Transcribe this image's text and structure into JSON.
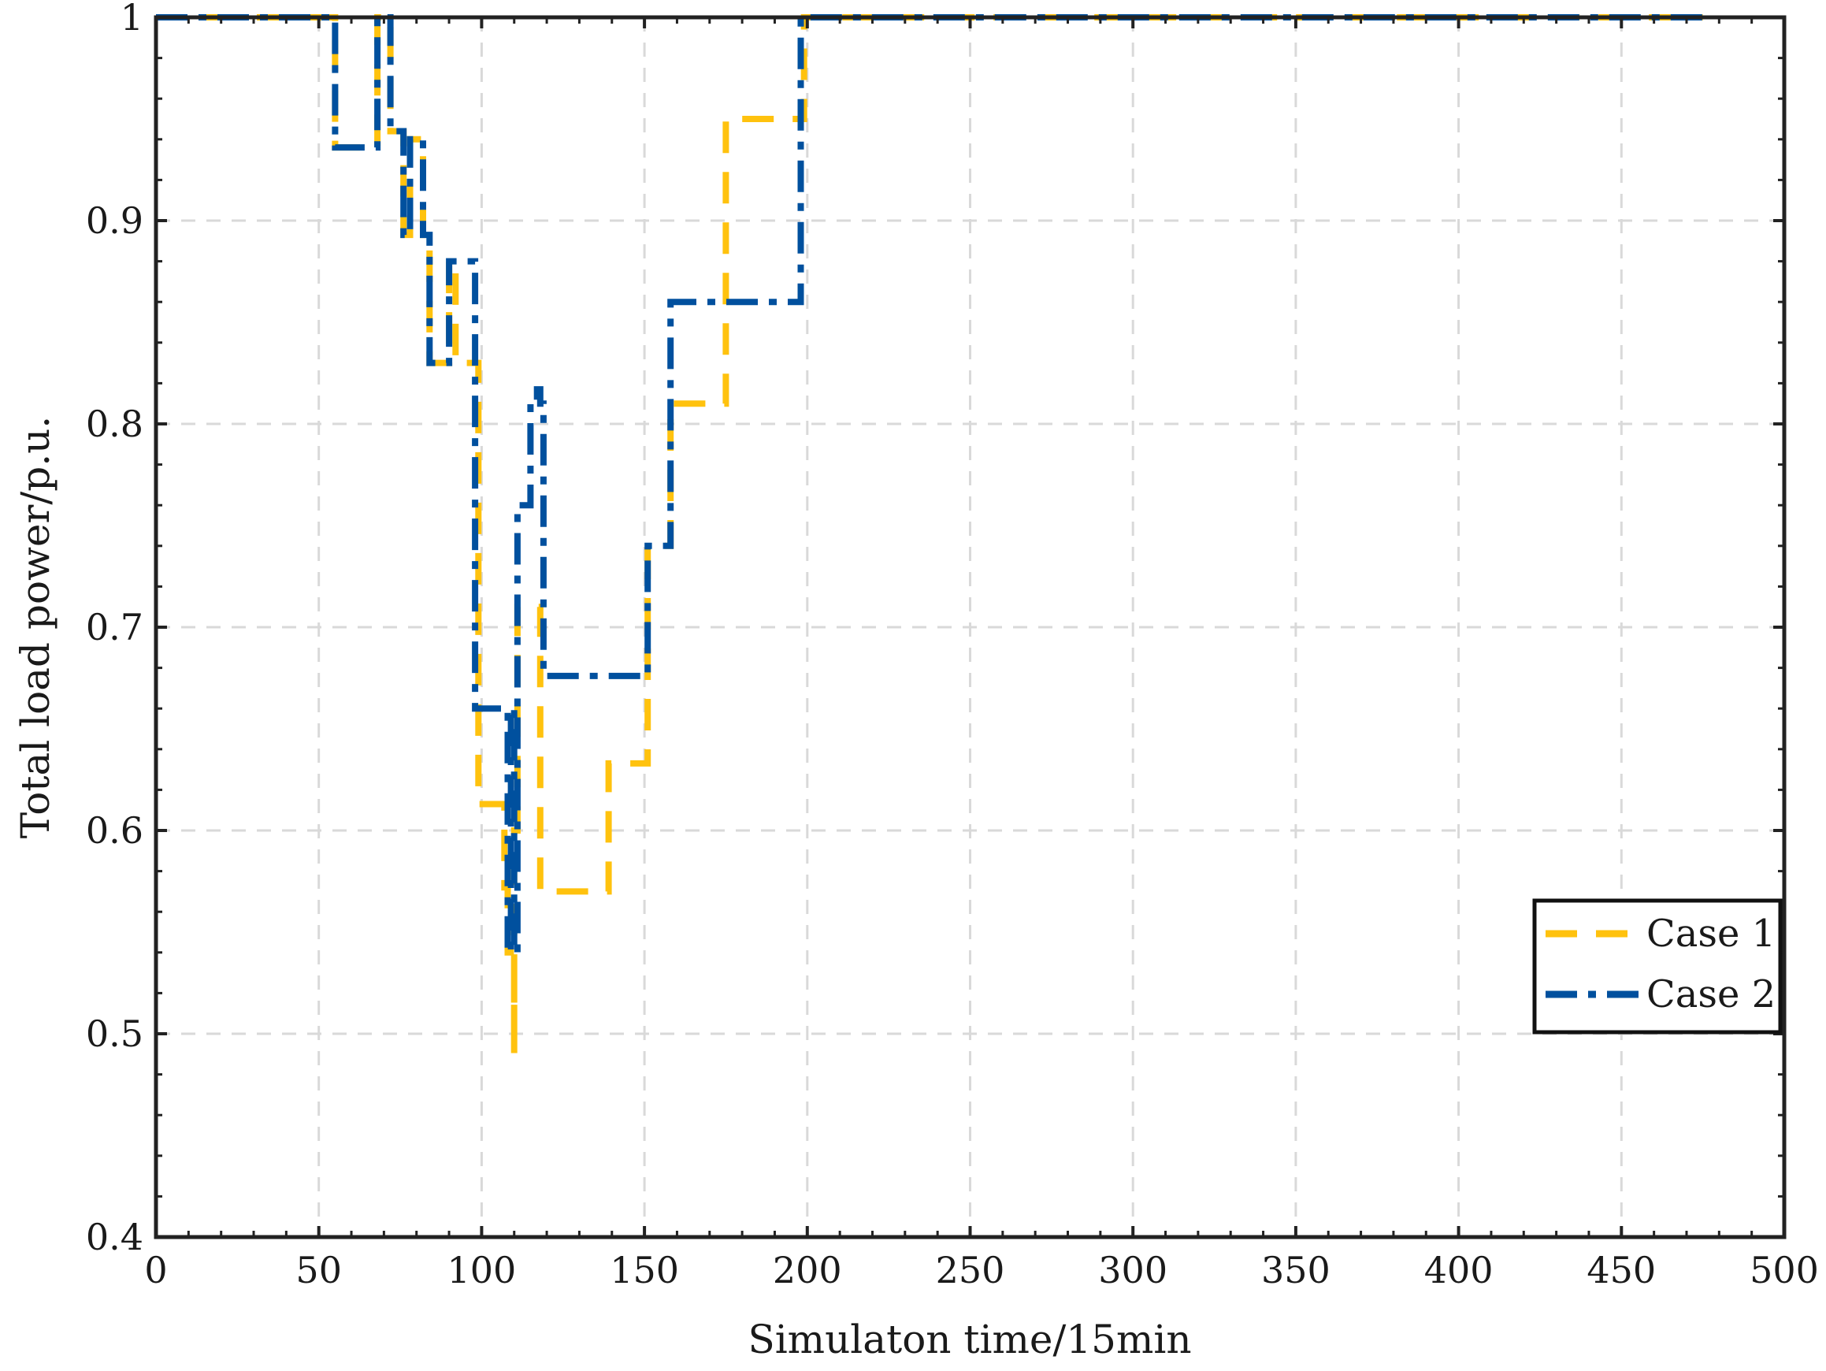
{
  "chart_data": {
    "type": "line",
    "title": "",
    "xlabel": "Simulaton time/15min",
    "ylabel": "Total load power/p.u.",
    "xlim": [
      0,
      500
    ],
    "ylim": [
      0.4,
      1.0
    ],
    "xticks": [
      0,
      50,
      100,
      150,
      200,
      250,
      300,
      350,
      400,
      450,
      500
    ],
    "yticks": [
      0.4,
      0.5,
      0.6,
      0.7,
      0.8,
      0.9,
      1.0
    ],
    "xtick_labels": [
      "0",
      "50",
      "100",
      "150",
      "200",
      "250",
      "300",
      "350",
      "400",
      "450",
      "500"
    ],
    "ytick_labels": [
      "0.4",
      "0.5",
      "0.6",
      "0.7",
      "0.8",
      "0.9",
      "1"
    ],
    "grid": true,
    "legend_position": "right, lower-middle",
    "series": [
      {
        "name": "Case 1",
        "color": "#FFC20E",
        "style": "dashed",
        "x": [
          0,
          55,
          55,
          68,
          68,
          72,
          72,
          76,
          76,
          78,
          78,
          82,
          82,
          84,
          84,
          90,
          90,
          92,
          92,
          99,
          99,
          99,
          99,
          107,
          107,
          108,
          108,
          110,
          110,
          110,
          110,
          111,
          111,
          112,
          112,
          118,
          118,
          120,
          120,
          139,
          139,
          141,
          141,
          151,
          151,
          158,
          158,
          159,
          159,
          175,
          175,
          176,
          176,
          199,
          199,
          475
        ],
        "y": [
          1.0,
          1.0,
          0.936,
          0.936,
          1.0,
          1.0,
          0.944,
          0.944,
          0.893,
          0.893,
          0.94,
          0.94,
          0.893,
          0.893,
          0.83,
          0.83,
          0.88,
          0.88,
          0.83,
          0.83,
          0.66,
          0.66,
          0.613,
          0.613,
          0.572,
          0.572,
          0.54,
          0.54,
          0.49,
          0.49,
          0.6,
          0.6,
          0.71,
          0.71,
          0.71,
          0.71,
          0.57,
          0.57,
          0.57,
          0.57,
          0.633,
          0.633,
          0.633,
          0.633,
          0.74,
          0.74,
          0.81,
          0.81,
          0.81,
          0.81,
          0.95,
          0.95,
          0.95,
          0.95,
          1.0,
          1.0
        ]
      },
      {
        "name": "Case 2",
        "color": "#00509E",
        "style": "dashdot",
        "x": [
          0,
          55,
          55,
          68,
          68,
          72,
          72,
          76,
          76,
          78,
          78,
          82,
          82,
          84,
          84,
          90,
          90,
          92,
          92,
          98,
          98,
          108,
          108,
          109,
          109,
          110,
          110,
          111,
          111,
          115,
          115,
          117,
          117,
          118,
          118,
          119,
          119,
          151,
          151,
          158,
          158,
          198,
          198,
          475
        ],
        "y": [
          1.0,
          1.0,
          0.936,
          0.936,
          1.0,
          1.0,
          0.944,
          0.944,
          0.893,
          0.893,
          0.94,
          0.94,
          0.893,
          0.893,
          0.83,
          0.83,
          0.88,
          0.88,
          0.88,
          0.88,
          0.66,
          0.66,
          0.54,
          0.54,
          0.66,
          0.66,
          0.54,
          0.54,
          0.76,
          0.76,
          0.81,
          0.81,
          0.817,
          0.817,
          0.81,
          0.81,
          0.676,
          0.676,
          0.74,
          0.74,
          0.86,
          0.86,
          1.0,
          1.0
        ]
      }
    ]
  }
}
